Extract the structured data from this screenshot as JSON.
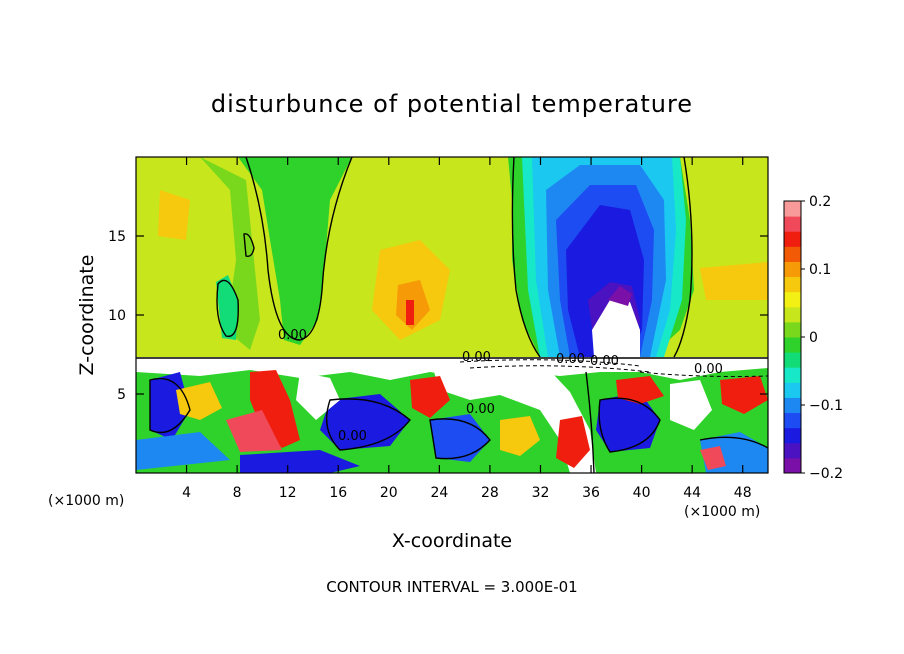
{
  "chart_data": {
    "type": "heatmap",
    "title": "disturbunce of potential temperature",
    "xlabel": "X-coordinate",
    "ylabel": "Z-coordinate",
    "x_unit_left": "(×1000 m)",
    "x_unit_right": "(×1000 m)",
    "xlim": [
      0,
      50
    ],
    "ylim": [
      0,
      20
    ],
    "x_ticks": [
      "4",
      "8",
      "12",
      "16",
      "20",
      "24",
      "28",
      "32",
      "36",
      "40",
      "44",
      "48"
    ],
    "x_tick_values": [
      4,
      8,
      12,
      16,
      20,
      24,
      28,
      32,
      36,
      40,
      44,
      48
    ],
    "y_ticks": [
      "5",
      "10",
      "15"
    ],
    "y_tick_values": [
      5,
      10,
      15
    ],
    "contour_labels": [
      "0.00",
      "0.00",
      "0.00",
      "0.00",
      "0.00",
      "0.00",
      "0.00"
    ],
    "footer": "CONTOUR INTERVAL = 3.000E-01",
    "colorbar": {
      "range": [
        -0.2,
        0.2
      ],
      "tick_labels": [
        "0.2",
        "0.1",
        "0",
        "−0.1",
        "−0.2"
      ],
      "tick_values": [
        0.2,
        0.1,
        0,
        -0.1,
        -0.2
      ],
      "colors": [
        "#7a10a8",
        "#4a12c0",
        "#1a1ae0",
        "#1c4cf2",
        "#1e88f2",
        "#1ac8f0",
        "#16e8c8",
        "#12dc78",
        "#2ed22a",
        "#7ad81c",
        "#c8e61c",
        "#f2f014",
        "#f6c80e",
        "#f69a08",
        "#f25a06",
        "#f01e0e",
        "#f04a5a",
        "#f89a9a"
      ]
    }
  }
}
